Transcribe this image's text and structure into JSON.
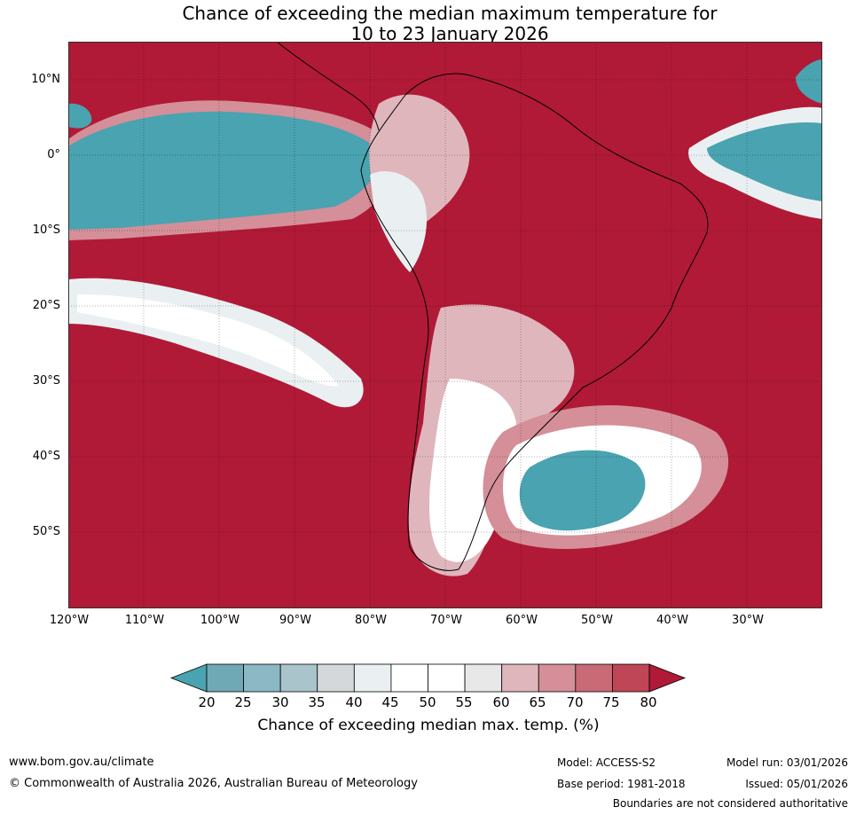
{
  "title": {
    "line1": "Chance of exceeding the median maximum temperature for",
    "line2": "10 to 23 January 2026"
  },
  "map": {
    "lat_labels": [
      "10°N",
      "0°",
      "10°S",
      "20°S",
      "30°S",
      "40°S",
      "50°S"
    ],
    "lon_labels": [
      "120°W",
      "110°W",
      "100°W",
      "90°W",
      "80°W",
      "70°W",
      "60°W",
      "50°W",
      "40°W",
      "30°W"
    ],
    "colors": {
      "high": "#b01a36",
      "low": "#4aa3b0",
      "neutral": "#ffffff",
      "coast": "#000000",
      "border": "#808080"
    }
  },
  "colorbar": {
    "ticks": [
      "20",
      "25",
      "30",
      "35",
      "40",
      "45",
      "50",
      "55",
      "60",
      "65",
      "70",
      "75",
      "80"
    ],
    "colors": [
      "#4aa3b0",
      "#6ea9b5",
      "#8bb8c4",
      "#a9c4ca",
      "#d4d8da",
      "#eaf0f2",
      "#ffffff",
      "#ffffff",
      "#e8e8e8",
      "#e0b6bd",
      "#d48f98",
      "#c96a77",
      "#bf4656",
      "#b01a36"
    ],
    "title": "Chance of exceeding median max. temp. (%)"
  },
  "footer": {
    "website": "www.bom.gov.au/climate",
    "copyright": "© Commonwealth of Australia 2026, Australian Bureau of Meteorology",
    "model": "Model: ACCESS-S2",
    "base_period": "Base period: 1981-2018",
    "model_run": "Model run: 03/01/2026",
    "issued": "Issued: 05/01/2026",
    "boundaries": "Boundaries are not considered authoritative"
  }
}
